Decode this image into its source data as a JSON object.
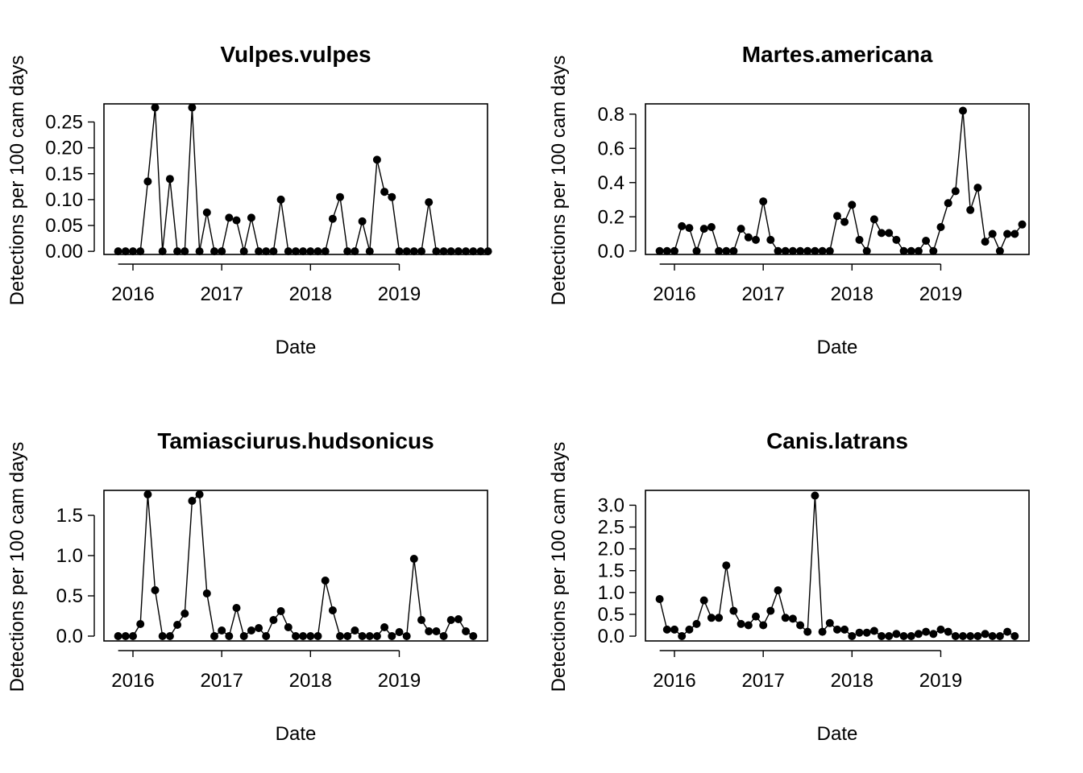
{
  "chart_data": [
    {
      "type": "line",
      "title": "Vulpes.vulpes",
      "xlabel": "Date",
      "ylabel": "Detections per 100 cam days",
      "x_ticks": [
        "2016",
        "2017",
        "2018",
        "2019"
      ],
      "y_ticks": [
        "0.00",
        "0.05",
        "0.10",
        "0.15",
        "0.20",
        "0.25"
      ],
      "ylim": [
        -0.006,
        0.285
      ],
      "x_start": "2015-11",
      "values": [
        0,
        0,
        0,
        0,
        0.135,
        0.278,
        0,
        0.14,
        0,
        0,
        0.278,
        0,
        0.075,
        0,
        0,
        0.065,
        0.06,
        0,
        0.065,
        0,
        0,
        0,
        0.1,
        0,
        0,
        0,
        0,
        0,
        0,
        0.063,
        0.105,
        0,
        0,
        0.058,
        0,
        0.177,
        0.115,
        0.105,
        0,
        0,
        0,
        0,
        0.095,
        0,
        0,
        0,
        0,
        0,
        0,
        0,
        0
      ]
    },
    {
      "type": "line",
      "title": "Martes.americana",
      "xlabel": "Date",
      "ylabel": "Detections per 100 cam days",
      "x_ticks": [
        "2016",
        "2017",
        "2018",
        "2019"
      ],
      "y_ticks": [
        "0.0",
        "0.2",
        "0.4",
        "0.6",
        "0.8"
      ],
      "ylim": [
        -0.02,
        0.86
      ],
      "x_start": "2015-11",
      "values": [
        0,
        0,
        0,
        0.145,
        0.135,
        0,
        0.13,
        0.14,
        0,
        0,
        0,
        0.13,
        0.08,
        0.065,
        0.29,
        0.065,
        0,
        0,
        0,
        0,
        0,
        0,
        0,
        0,
        0.205,
        0.17,
        0.27,
        0.065,
        0,
        0.185,
        0.105,
        0.105,
        0.065,
        0,
        0,
        0,
        0.06,
        0,
        0.14,
        0.28,
        0.35,
        0.82,
        0.24,
        0.37,
        0.055,
        0.1,
        0,
        0.1,
        0.1,
        0.155
      ]
    },
    {
      "type": "line",
      "title": "Tamiasciurus.hudsonicus",
      "xlabel": "Date",
      "ylabel": "Detections per 100 cam days",
      "x_ticks": [
        "2016",
        "2017",
        "2018",
        "2019"
      ],
      "y_ticks": [
        "0.0",
        "0.5",
        "1.0",
        "1.5"
      ],
      "ylim": [
        -0.06,
        1.81
      ],
      "x_start": "2015-11",
      "values": [
        0,
        0,
        0,
        0.15,
        1.76,
        0.57,
        0,
        0,
        0.14,
        0.28,
        1.68,
        1.76,
        0.53,
        0,
        0.07,
        0,
        0.35,
        0,
        0.07,
        0.1,
        0,
        0.2,
        0.31,
        0.11,
        0,
        0,
        0,
        0,
        0.69,
        0.32,
        0,
        0,
        0.07,
        0,
        0,
        0,
        0.11,
        0,
        0.05,
        0,
        0.96,
        0.2,
        0.06,
        0.06,
        0,
        0.2,
        0.21,
        0.06,
        0
      ]
    },
    {
      "type": "line",
      "title": "Canis.latrans",
      "xlabel": "Date",
      "ylabel": "Detections per 100 cam days",
      "x_ticks": [
        "2016",
        "2017",
        "2018",
        "2019"
      ],
      "y_ticks": [
        "0.0",
        "0.5",
        "1.0",
        "1.5",
        "2.0",
        "2.5",
        "3.0"
      ],
      "ylim": [
        -0.11,
        3.34
      ],
      "x_start": "2015-11",
      "values": [
        0.85,
        0.15,
        0.15,
        0,
        0.15,
        0.28,
        0.82,
        0.42,
        0.42,
        1.62,
        0.58,
        0.28,
        0.25,
        0.45,
        0.25,
        0.58,
        1.05,
        0.42,
        0.4,
        0.25,
        0.1,
        3.22,
        0.1,
        0.3,
        0.15,
        0.15,
        0,
        0.08,
        0.08,
        0.12,
        0,
        0,
        0.05,
        0,
        0,
        0.05,
        0.1,
        0.05,
        0.15,
        0.1,
        0,
        0,
        0,
        0,
        0.05,
        0,
        0,
        0.1,
        0
      ]
    }
  ]
}
